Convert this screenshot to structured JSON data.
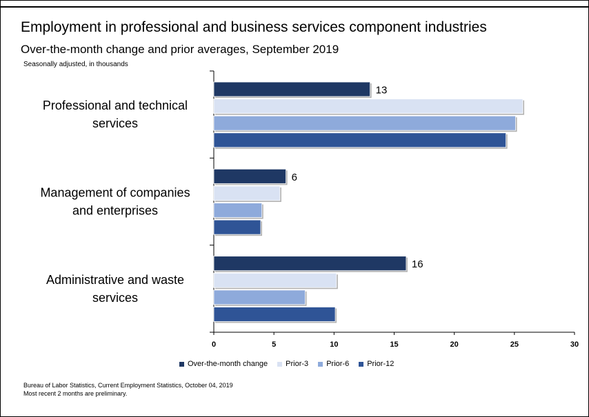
{
  "title": "Employment in professional and business services component industries",
  "subtitle": "Over-the-month change and prior averages, September 2019",
  "note": "Seasonally adjusted, in thousands",
  "source_lines": [
    "Bureau of Labor Statistics, Current Employment Statistics, October 04, 2019",
    "Most recent 2 months are preliminary."
  ],
  "colors": {
    "Over-the-month change": "#1f3864",
    "Prior-3": "#d9e2f3",
    "Prior-6": "#8eaadb",
    "Prior-12": "#2f5496"
  },
  "chart_data": {
    "type": "bar",
    "orientation": "horizontal",
    "categories": [
      [
        "Professional and technical",
        "services"
      ],
      [
        "Management of companies",
        "and enterprises"
      ],
      [
        "Administrative and waste",
        "services"
      ]
    ],
    "series": [
      {
        "name": "Over-the-month change",
        "values": [
          13,
          6,
          16
        ]
      },
      {
        "name": "Prior-3",
        "values": [
          25.7,
          5.5,
          10.2
        ]
      },
      {
        "name": "Prior-6",
        "values": [
          25.1,
          4.0,
          7.6
        ]
      },
      {
        "name": "Prior-12",
        "values": [
          24.3,
          3.9,
          10.1
        ]
      }
    ],
    "data_labels": [
      "13",
      "6",
      "16"
    ],
    "xlim": [
      0,
      30
    ],
    "xticks": [
      0,
      5,
      10,
      15,
      20,
      25,
      30
    ],
    "grid": false,
    "legend_position": "bottom"
  }
}
